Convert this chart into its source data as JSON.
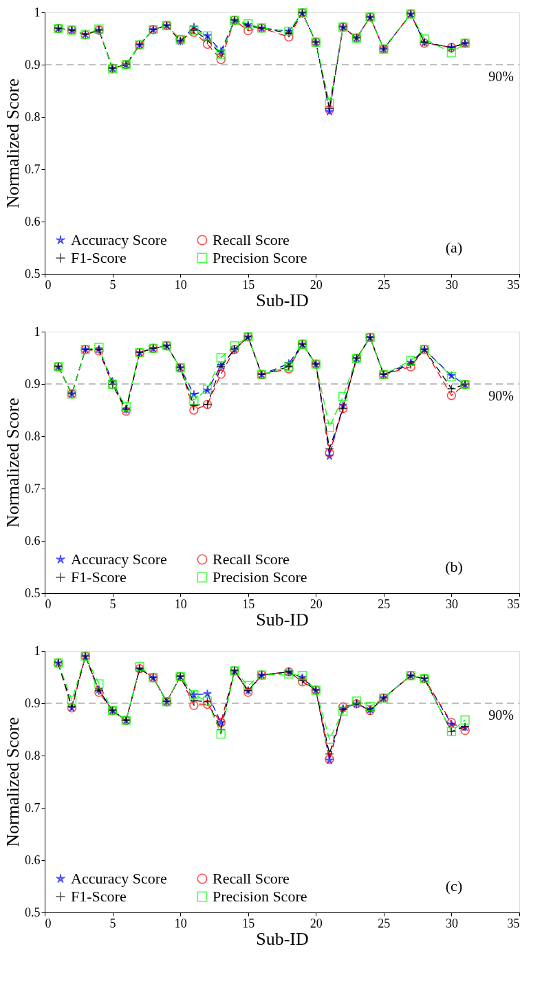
{
  "chart_data": [
    {
      "type": "line",
      "xlabel": "Sub-ID",
      "ylabel": "Normalized Score",
      "line_style": "dashed",
      "legend": "bottom left",
      "x": [
        1,
        2,
        3,
        4,
        5,
        6,
        7,
        8,
        9,
        10,
        11,
        12,
        13,
        14,
        15,
        16,
        18,
        19,
        20,
        21,
        22,
        23,
        24,
        25,
        27,
        28,
        30,
        31
      ],
      "xlim": [
        0,
        35
      ],
      "xticks": [
        0,
        5,
        10,
        15,
        20,
        25,
        30,
        35
      ],
      "ylim": [
        0.5,
        1
      ],
      "yticks": [
        0.5,
        0.6,
        0.7,
        0.8,
        0.9,
        1
      ],
      "series": [
        {
          "name": "Accuracy Score",
          "color": "#0000ff",
          "marker": "star",
          "values": [
            0.969,
            0.966,
            0.958,
            0.966,
            0.893,
            0.9,
            0.938,
            0.967,
            0.975,
            0.945,
            0.972,
            0.955,
            0.926,
            0.985,
            0.976,
            0.97,
            0.964,
            0.999,
            0.943,
            0.81,
            0.972,
            0.951,
            0.991,
            0.93,
            0.997,
            0.942,
            0.933,
            0.941
          ]
        },
        {
          "name": "Recall Score",
          "color": "#ff0000",
          "marker": "circle",
          "values": [
            0.969,
            0.966,
            0.957,
            0.966,
            0.893,
            0.9,
            0.938,
            0.967,
            0.975,
            0.948,
            0.962,
            0.939,
            0.91,
            0.985,
            0.965,
            0.97,
            0.953,
            0.999,
            0.943,
            0.814,
            0.972,
            0.951,
            0.991,
            0.93,
            0.997,
            0.941,
            0.933,
            0.941
          ]
        },
        {
          "name": "F1-Score",
          "color": "#000000",
          "marker": "cross",
          "values": [
            0.969,
            0.966,
            0.958,
            0.966,
            0.893,
            0.9,
            0.938,
            0.967,
            0.975,
            0.945,
            0.966,
            0.947,
            0.92,
            0.985,
            0.974,
            0.97,
            0.96,
            0.999,
            0.943,
            0.816,
            0.972,
            0.951,
            0.991,
            0.93,
            0.997,
            0.943,
            0.933,
            0.941
          ]
        },
        {
          "name": "Precision Score",
          "color": "#00ff00",
          "marker": "square",
          "values": [
            0.969,
            0.966,
            0.958,
            0.968,
            0.892,
            0.9,
            0.938,
            0.967,
            0.975,
            0.948,
            0.966,
            0.955,
            0.92,
            0.985,
            0.978,
            0.97,
            0.964,
            0.999,
            0.943,
            0.826,
            0.972,
            0.951,
            0.991,
            0.93,
            0.997,
            0.949,
            0.923,
            0.941
          ]
        }
      ],
      "ref_lines": [
        {
          "axis": "y",
          "value": 0.9,
          "label": "90%",
          "color": "#808080",
          "line_style": "dashed"
        }
      ],
      "annotations": [
        "(a)"
      ]
    },
    {
      "type": "line",
      "xlabel": "Sub-ID",
      "ylabel": "Normalized Score",
      "line_style": "dashed",
      "legend": "bottom left",
      "x": [
        1,
        2,
        3,
        4,
        5,
        6,
        7,
        8,
        9,
        10,
        11,
        12,
        13,
        14,
        15,
        16,
        18,
        19,
        20,
        21,
        22,
        23,
        24,
        25,
        27,
        28,
        30,
        31
      ],
      "xlim": [
        0,
        35
      ],
      "xticks": [
        0,
        5,
        10,
        15,
        20,
        25,
        30,
        35
      ],
      "ylim": [
        0.5,
        1
      ],
      "yticks": [
        0.5,
        0.6,
        0.7,
        0.8,
        0.9,
        1
      ],
      "series": [
        {
          "name": "Accuracy Score",
          "color": "#0000ff",
          "marker": "star",
          "values": [
            0.933,
            0.881,
            0.966,
            0.966,
            0.905,
            0.851,
            0.96,
            0.968,
            0.973,
            0.931,
            0.88,
            0.888,
            0.935,
            0.966,
            0.99,
            0.918,
            0.939,
            0.976,
            0.938,
            0.762,
            0.859,
            0.949,
            0.989,
            0.918,
            0.941,
            0.966,
            0.916,
            0.899
          ]
        },
        {
          "name": "Recall Score",
          "color": "#ff0000",
          "marker": "circle",
          "values": [
            0.933,
            0.881,
            0.966,
            0.963,
            0.899,
            0.848,
            0.96,
            0.968,
            0.973,
            0.931,
            0.85,
            0.861,
            0.919,
            0.966,
            0.99,
            0.918,
            0.929,
            0.976,
            0.938,
            0.768,
            0.853,
            0.949,
            0.989,
            0.918,
            0.933,
            0.966,
            0.878,
            0.899
          ]
        },
        {
          "name": "F1-Score",
          "color": "#000000",
          "marker": "cross",
          "values": [
            0.933,
            0.881,
            0.966,
            0.966,
            0.899,
            0.851,
            0.96,
            0.968,
            0.973,
            0.931,
            0.859,
            0.861,
            0.933,
            0.966,
            0.99,
            0.918,
            0.933,
            0.976,
            0.938,
            0.776,
            0.853,
            0.949,
            0.989,
            0.918,
            0.937,
            0.966,
            0.891,
            0.899
          ]
        },
        {
          "name": "Precision Score",
          "color": "#00ff00",
          "marker": "square",
          "values": [
            0.933,
            0.881,
            0.966,
            0.97,
            0.899,
            0.857,
            0.96,
            0.968,
            0.973,
            0.931,
            0.869,
            0.89,
            0.95,
            0.973,
            0.99,
            0.918,
            0.933,
            0.976,
            0.938,
            0.817,
            0.876,
            0.949,
            0.989,
            0.918,
            0.945,
            0.966,
            0.914,
            0.899
          ]
        }
      ],
      "ref_lines": [
        {
          "axis": "y",
          "value": 0.9,
          "label": "90%",
          "color": "#808080",
          "line_style": "dashed"
        }
      ],
      "annotations": [
        "(b)"
      ]
    },
    {
      "type": "line",
      "xlabel": "Sub-ID",
      "ylabel": "Normalized Score",
      "line_style": "dashed",
      "legend": "bottom left",
      "x": [
        1,
        2,
        3,
        4,
        5,
        6,
        7,
        8,
        9,
        10,
        11,
        12,
        13,
        14,
        15,
        16,
        18,
        19,
        20,
        21,
        22,
        23,
        24,
        25,
        27,
        28,
        30,
        31
      ],
      "xlim": [
        0,
        35
      ],
      "xticks": [
        0,
        5,
        10,
        15,
        20,
        25,
        30,
        35
      ],
      "ylim": [
        0.5,
        1
      ],
      "yticks": [
        0.5,
        0.6,
        0.7,
        0.8,
        0.9,
        1
      ],
      "series": [
        {
          "name": "Accuracy Score",
          "color": "#0000ff",
          "marker": "star",
          "values": [
            0.977,
            0.891,
            0.99,
            0.926,
            0.886,
            0.867,
            0.966,
            0.949,
            0.903,
            0.951,
            0.916,
            0.918,
            0.863,
            0.962,
            0.924,
            0.954,
            0.96,
            0.949,
            0.925,
            0.791,
            0.89,
            0.899,
            0.888,
            0.91,
            0.953,
            0.947,
            0.86,
            0.854
          ]
        },
        {
          "name": "Recall Score",
          "color": "#ff0000",
          "marker": "circle",
          "values": [
            0.977,
            0.891,
            0.99,
            0.921,
            0.886,
            0.867,
            0.966,
            0.949,
            0.903,
            0.951,
            0.896,
            0.898,
            0.863,
            0.962,
            0.921,
            0.954,
            0.96,
            0.941,
            0.925,
            0.793,
            0.893,
            0.899,
            0.886,
            0.91,
            0.953,
            0.947,
            0.863,
            0.848
          ]
        },
        {
          "name": "F1-Score",
          "color": "#000000",
          "marker": "cross",
          "values": [
            0.977,
            0.894,
            0.99,
            0.924,
            0.886,
            0.867,
            0.966,
            0.949,
            0.903,
            0.951,
            0.905,
            0.903,
            0.85,
            0.962,
            0.924,
            0.954,
            0.96,
            0.943,
            0.925,
            0.803,
            0.888,
            0.899,
            0.886,
            0.91,
            0.953,
            0.947,
            0.846,
            0.855
          ]
        },
        {
          "name": "Precision Score",
          "color": "#00ff00",
          "marker": "square",
          "values": [
            0.977,
            0.906,
            0.99,
            0.937,
            0.886,
            0.867,
            0.97,
            0.949,
            0.903,
            0.951,
            0.916,
            0.904,
            0.841,
            0.962,
            0.934,
            0.954,
            0.956,
            0.953,
            0.925,
            0.831,
            0.885,
            0.904,
            0.894,
            0.91,
            0.953,
            0.947,
            0.846,
            0.868
          ]
        }
      ],
      "ref_lines": [
        {
          "axis": "y",
          "value": 0.9,
          "label": "90%",
          "color": "#808080",
          "line_style": "dashed"
        }
      ],
      "annotations": [
        "(c)"
      ]
    }
  ]
}
